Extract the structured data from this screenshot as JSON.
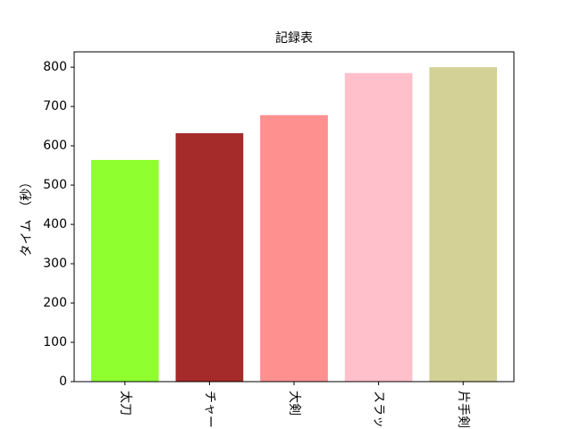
{
  "chart_data": {
    "type": "bar",
    "title": "記録表",
    "y_label": "タイム　（秒）",
    "categories": [
      "太刀",
      "チャージ",
      "大剣",
      "スラッシ",
      "片手剣"
    ],
    "values": [
      564,
      632,
      678,
      785,
      800
    ],
    "colors": [
      "#8fff30",
      "#a52a2a",
      "#ff9090",
      "#ffc0cb",
      "#d3d195"
    ],
    "ylim": [
      0,
      839
    ],
    "yticks": [
      0,
      100,
      200,
      300,
      400,
      500,
      600,
      700,
      800
    ]
  }
}
